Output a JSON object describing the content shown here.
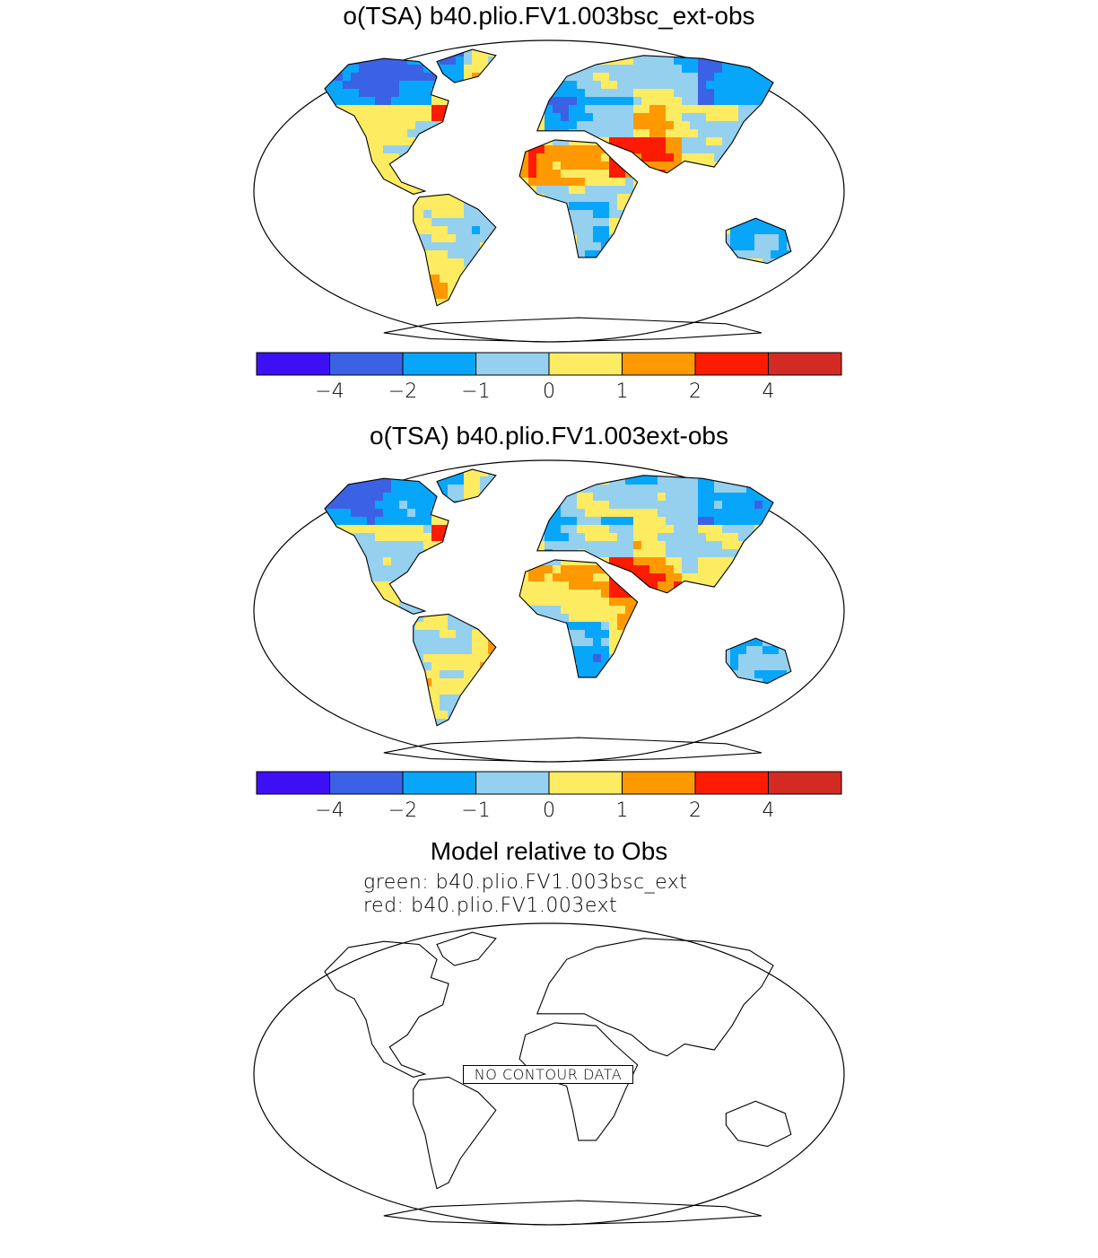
{
  "panels": [
    {
      "title": "o(TSA) b40.plio.FV1.003bsc_ext-obs",
      "variant": 0
    },
    {
      "title": "o(TSA) b40.plio.FV1.003ext-obs",
      "variant": 1
    }
  ],
  "colorbar": {
    "colors": [
      "#3d0ff5",
      "#3b62e4",
      "#08a6fb",
      "#95d0ee",
      "#fdeb62",
      "#fe9902",
      "#fd1c02",
      "#d42a24"
    ],
    "labels": [
      "−4",
      "−2",
      "−1",
      "0",
      "1",
      "2",
      "4"
    ]
  },
  "comparison": {
    "title": "Model relative to Obs",
    "line1": "green: b40.plio.FV1.003bsc_ext",
    "line2": "red: b40.plio.FV1.003ext",
    "no_data": "NO CONTOUR DATA"
  }
}
